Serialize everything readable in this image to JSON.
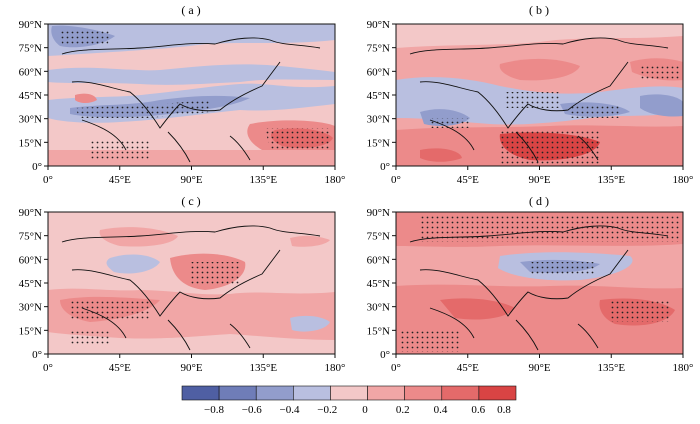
{
  "panels": [
    {
      "label": "( a )",
      "pattern": "a"
    },
    {
      "label": "( b )",
      "pattern": "b"
    },
    {
      "label": "( c )",
      "pattern": "c"
    },
    {
      "label": "( d )",
      "pattern": "d"
    }
  ],
  "lat_ticks": [
    "90°N",
    "75°N",
    "60°N",
    "45°N",
    "30°N",
    "15°N",
    "0°"
  ],
  "lon_ticks": [
    "0°",
    "45°E",
    "90°E",
    "135°E",
    "180°"
  ],
  "colorbar": {
    "ticks": [
      "−0.8",
      "−0.6",
      "−0.4",
      "−0.2",
      "0",
      "0.2",
      "0.4",
      "0.6",
      "0.8"
    ],
    "colors": [
      "#4f5fa3",
      "#6f7db8",
      "#929dcc",
      "#b9bfe0",
      "#f3c8c8",
      "#f1a6a6",
      "#ec8a8a",
      "#e46a6a",
      "#d94444"
    ]
  }
}
